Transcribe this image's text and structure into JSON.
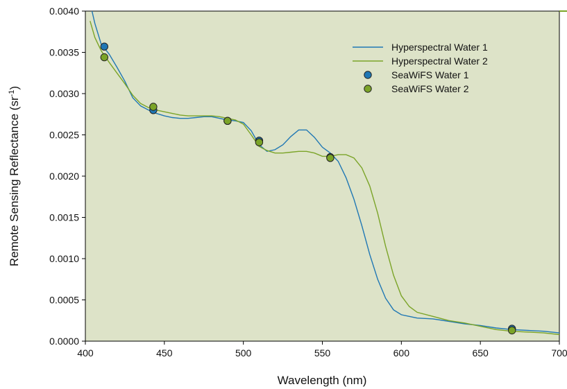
{
  "chart_data": {
    "type": "line",
    "xlabel": "Wavelength (nm)",
    "ylabel_main": "Remote Sensing Reflectance (sr",
    "ylabel_sup": "-1",
    "ylabel_tail": ")",
    "xlim": [
      400,
      700
    ],
    "ylim": [
      0.0,
      0.004
    ],
    "x_ticks": [
      400,
      450,
      500,
      550,
      600,
      650,
      700
    ],
    "x_tick_labels": [
      "400",
      "450",
      "500",
      "550",
      "600",
      "650",
      "700"
    ],
    "y_ticks": [
      0,
      0.0005,
      0.001,
      0.0015,
      0.002,
      0.0025,
      0.003,
      0.0035,
      0.004
    ],
    "y_tick_labels": [
      "0.0000",
      "0.0005",
      "0.0010",
      "0.0015",
      "0.0020",
      "0.0025",
      "0.0030",
      "0.0035",
      "0.0040"
    ],
    "grid": false,
    "legend_position": "top-right",
    "plot_background": "#dde3c8",
    "series": [
      {
        "name": "Hyperspectral Water 1",
        "kind": "line",
        "color": "#1f77b4",
        "x": [
          403,
          406,
          410,
          415,
          420,
          425,
          430,
          435,
          440,
          445,
          450,
          455,
          460,
          465,
          470,
          475,
          480,
          485,
          490,
          495,
          500,
          505,
          510,
          515,
          520,
          525,
          530,
          535,
          540,
          545,
          550,
          555,
          560,
          565,
          570,
          575,
          580,
          585,
          590,
          595,
          600,
          605,
          610,
          620,
          630,
          640,
          650,
          660,
          670,
          680,
          690,
          700
        ],
        "y": [
          0.0041,
          0.00385,
          0.0036,
          0.00348,
          0.00332,
          0.00315,
          0.00295,
          0.00285,
          0.0028,
          0.00276,
          0.00273,
          0.00271,
          0.0027,
          0.0027,
          0.00271,
          0.00272,
          0.00272,
          0.0027,
          0.00268,
          0.00267,
          0.00265,
          0.00255,
          0.00238,
          0.0023,
          0.00232,
          0.00238,
          0.00248,
          0.00256,
          0.00256,
          0.00247,
          0.00235,
          0.00228,
          0.00218,
          0.00198,
          0.00172,
          0.0014,
          0.00105,
          0.00075,
          0.00052,
          0.00038,
          0.00032,
          0.0003,
          0.00028,
          0.00027,
          0.00024,
          0.00021,
          0.00019,
          0.00016,
          0.00014,
          0.00013,
          0.00012,
          0.0001
        ]
      },
      {
        "name": "Hyperspectral Water 2",
        "kind": "line",
        "color": "#7ba428",
        "x": [
          403,
          406,
          410,
          415,
          420,
          425,
          430,
          435,
          440,
          445,
          450,
          455,
          460,
          465,
          470,
          475,
          480,
          485,
          490,
          495,
          500,
          505,
          510,
          515,
          520,
          525,
          530,
          535,
          540,
          545,
          550,
          555,
          560,
          565,
          570,
          575,
          580,
          585,
          590,
          595,
          600,
          605,
          610,
          620,
          630,
          640,
          650,
          660,
          670,
          680,
          690,
          700
        ],
        "y": [
          0.00388,
          0.00368,
          0.00352,
          0.00338,
          0.00325,
          0.00312,
          0.00298,
          0.00288,
          0.00283,
          0.0028,
          0.00278,
          0.00276,
          0.00274,
          0.00273,
          0.00273,
          0.00273,
          0.00273,
          0.00272,
          0.0027,
          0.00268,
          0.00263,
          0.0025,
          0.00236,
          0.00231,
          0.00228,
          0.00228,
          0.00229,
          0.0023,
          0.0023,
          0.00228,
          0.00224,
          0.00224,
          0.00226,
          0.00226,
          0.00222,
          0.0021,
          0.00188,
          0.00155,
          0.00115,
          0.0008,
          0.00055,
          0.00042,
          0.00035,
          0.0003,
          0.00025,
          0.00022,
          0.00018,
          0.00014,
          0.00012,
          0.00011,
          0.0001,
          8e-05
        ]
      },
      {
        "name": "SeaWiFS Water 1",
        "kind": "points",
        "color": "#1f77b4",
        "x": [
          412,
          443,
          490,
          510,
          555,
          670
        ],
        "y": [
          0.00357,
          0.0028,
          0.00267,
          0.00243,
          0.00223,
          0.00015
        ]
      },
      {
        "name": "SeaWiFS Water 2",
        "kind": "points",
        "color": "#7ba428",
        "x": [
          412,
          443,
          490,
          510,
          555,
          670
        ],
        "y": [
          0.00344,
          0.00284,
          0.00267,
          0.00241,
          0.00222,
          0.00013
        ]
      }
    ]
  }
}
